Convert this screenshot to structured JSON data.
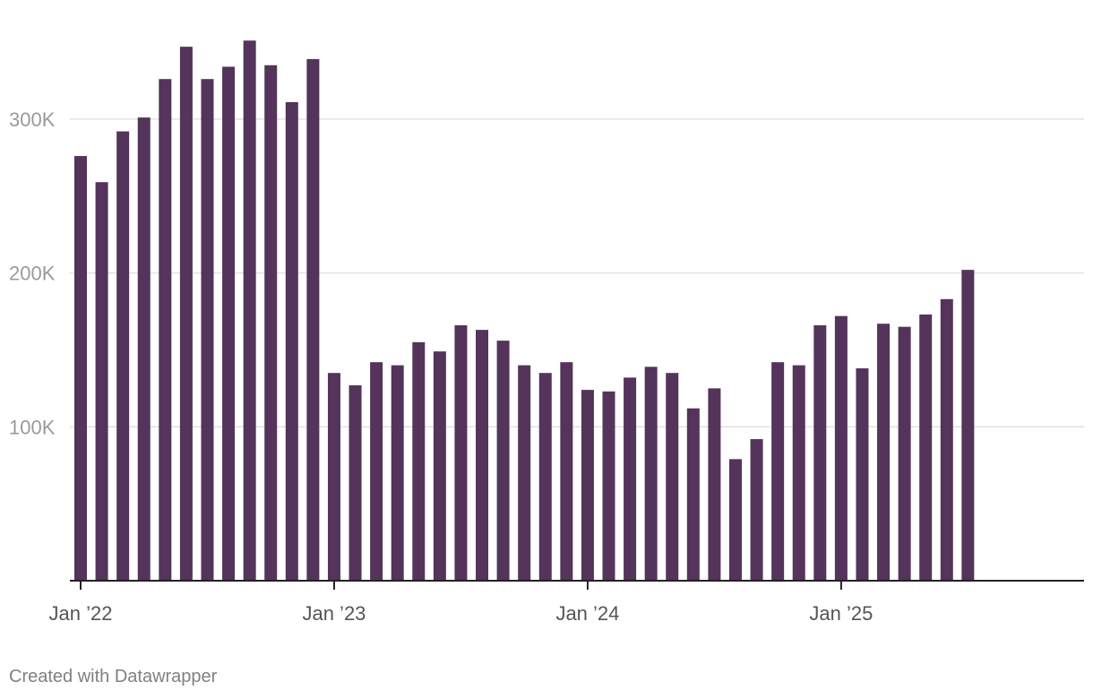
{
  "chart_data": {
    "type": "bar",
    "title": "",
    "xlabel": "",
    "ylabel": "",
    "ylim": [
      0,
      350000
    ],
    "y_ticks": [
      {
        "value": 100000,
        "label": "100K"
      },
      {
        "value": 200000,
        "label": "200K"
      },
      {
        "value": 300000,
        "label": "300K"
      }
    ],
    "x_ticks": [
      {
        "index": 0,
        "label": "Jan ’22"
      },
      {
        "index": 12,
        "label": "Jan ’23"
      },
      {
        "index": 24,
        "label": "Jan ’24"
      },
      {
        "index": 36,
        "label": "Jan ’25"
      }
    ],
    "x_slots": 48,
    "grid": true,
    "bar_color": "#54345a",
    "categories": [
      "Jan 2022",
      "Feb 2022",
      "Mar 2022",
      "Apr 2022",
      "May 2022",
      "Jun 2022",
      "Jul 2022",
      "Aug 2022",
      "Sep 2022",
      "Oct 2022",
      "Nov 2022",
      "Dec 2022",
      "Jan 2023",
      "Feb 2023",
      "Mar 2023",
      "Apr 2023",
      "May 2023",
      "Jun 2023",
      "Jul 2023",
      "Aug 2023",
      "Sep 2023",
      "Oct 2023",
      "Nov 2023",
      "Dec 2023",
      "Jan 2024",
      "Feb 2024",
      "Mar 2024",
      "Apr 2024",
      "May 2024",
      "Jun 2024",
      "Jul 2024",
      "Aug 2024",
      "Sep 2024",
      "Oct 2024",
      "Nov 2024",
      "Dec 2024",
      "Jan 2025",
      "Feb 2025",
      "Mar 2025",
      "Apr 2025",
      "May 2025",
      "Jun 2025",
      "Jul 2025"
    ],
    "values": [
      276000,
      259000,
      292000,
      301000,
      326000,
      347000,
      326000,
      334000,
      351000,
      335000,
      311000,
      339000,
      135000,
      127000,
      142000,
      140000,
      155000,
      149000,
      166000,
      163000,
      156000,
      140000,
      135000,
      142000,
      124000,
      123000,
      132000,
      139000,
      135000,
      112000,
      125000,
      79000,
      92000,
      142000,
      140000,
      166000,
      172000,
      138000,
      167000,
      165000,
      173000,
      183000,
      202000
    ]
  },
  "footer": {
    "credit": "Created with Datawrapper"
  }
}
